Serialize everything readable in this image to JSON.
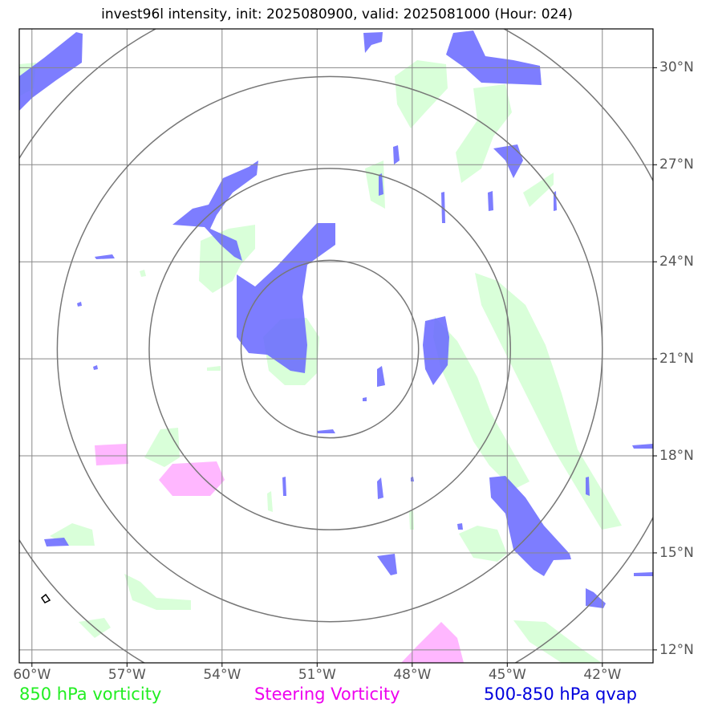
{
  "title": "invest96l intensity, init: 2025080900, valid: 2025081000 (Hour: 024)",
  "map": {
    "lon_ticks": [
      "60°W",
      "57°W",
      "54°W",
      "51°W",
      "48°W",
      "45°W",
      "42°W"
    ],
    "lat_ticks": [
      "30°N",
      "27°N",
      "24°N",
      "21°N",
      "18°N",
      "15°N",
      "12°N"
    ],
    "lon_values": [
      -60,
      -57,
      -54,
      -51,
      -48,
      -45,
      -42
    ],
    "lat_values": [
      30,
      27,
      24,
      21,
      18,
      15,
      12
    ],
    "extent": {
      "lon_min": -60.4,
      "lon_max": -40.4,
      "lat_min": 11.6,
      "lat_max": 31.2
    },
    "center": {
      "lon": -50.6,
      "lat": 21.3
    },
    "range_rings_deg": [
      2.8,
      5.7,
      8.6,
      11.5
    ]
  },
  "legend": {
    "vorticity_850": {
      "label": "850 hPa vorticity",
      "color": "#22ee22"
    },
    "steering_vorticity": {
      "label": "Steering Vorticity",
      "color": "#ee00ee"
    },
    "qvap": {
      "label": "500-850 hPa qvap",
      "color": "#0000dd"
    }
  },
  "colors": {
    "vorticity_fill": "#ccffcc",
    "steering_fill": "#ffaaff",
    "qvap_fill": "#6666ff",
    "grid": "#888888",
    "rings": "#777777"
  }
}
